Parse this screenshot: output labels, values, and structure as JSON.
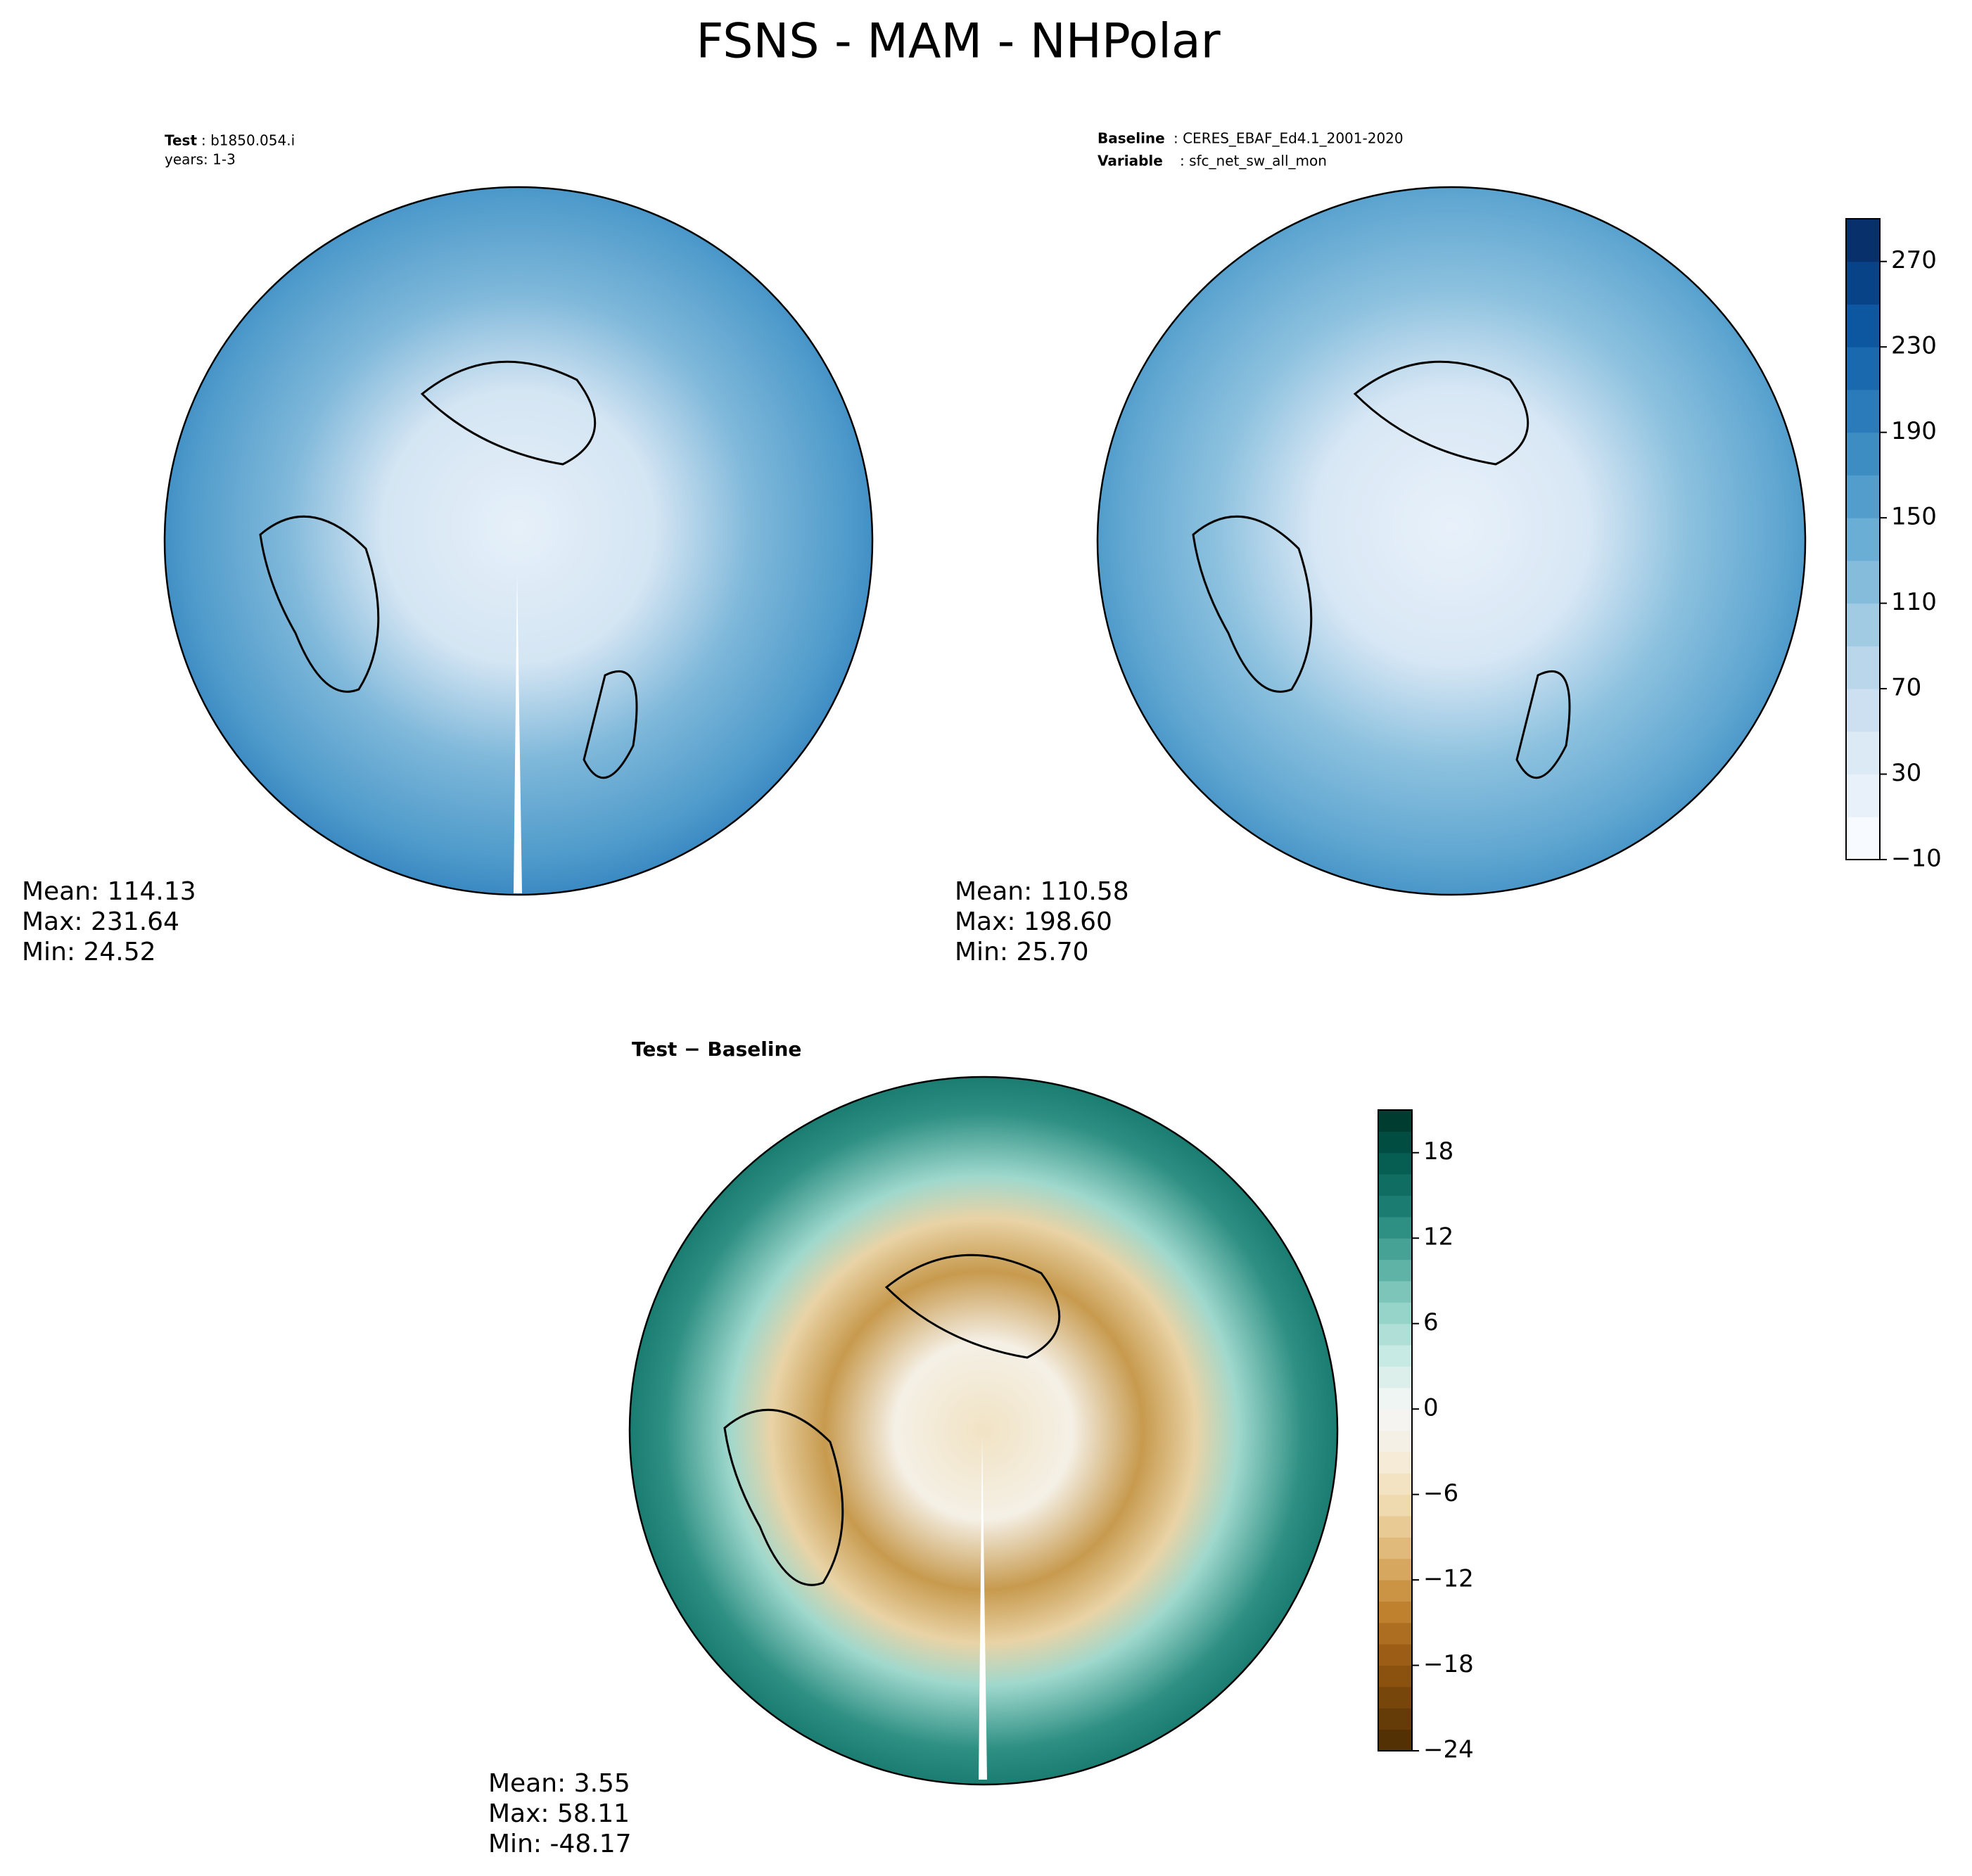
{
  "title": "FSNS - MAM - NHPolar",
  "chart_data": [
    {
      "type": "polar-map",
      "label": "Test",
      "text": ": b1850.054.i",
      "subtext": "years: 1-3",
      "stats": [
        "Mean: 114.13",
        "Max: 231.64",
        "Min: 24.52"
      ]
    },
    {
      "type": "polar-map",
      "label": "Baseline",
      "text": ": CERES_EBAF_Ed4.1_2001-2020",
      "label2": "Variable",
      "text2": ": sfc_net_sw_all_mon",
      "stats": [
        "Mean: 110.58",
        "Max: 198.60",
        "Min: 25.70"
      ],
      "colorbar": {
        "ylim": [
          -10,
          290
        ],
        "yticks": [
          {
            "value": -10,
            "label": "−10"
          },
          30,
          70,
          110,
          150,
          190,
          230,
          270
        ],
        "colors": [
          "#f7fbff",
          "#e8f1fa",
          "#dceaf6",
          "#cde0f1",
          "#bad6eb",
          "#a0cbe2",
          "#85bcdc",
          "#6aaed6",
          "#529dcc",
          "#3d8dc3",
          "#2b7bba",
          "#1a68ae",
          "#0d57a1",
          "#084287",
          "#08306b"
        ]
      }
    },
    {
      "type": "polar-map",
      "label": "Test − Baseline",
      "stats": [
        "Mean:  3.55",
        "Max: 58.11",
        "Min: -48.17"
      ],
      "colorbar": {
        "ylim": [
          -24,
          21
        ],
        "yticks": [
          {
            "value": -24,
            "label": "−24"
          },
          {
            "value": -18,
            "label": "−18"
          },
          {
            "value": -12,
            "label": "−12"
          },
          {
            "value": -6,
            "label": "−6"
          },
          0,
          6,
          12,
          18
        ],
        "colors": [
          "#543005",
          "#653b08",
          "#77460b",
          "#8a510f",
          "#9c5e17",
          "#ad6e22",
          "#bf812d",
          "#cb9445",
          "#d6a75e",
          "#dfba7a",
          "#e8cb94",
          "#efd9ae",
          "#f3e3c3",
          "#f5ebd6",
          "#f5f0e6",
          "#f5f4f0",
          "#eef5f3",
          "#dcefeb",
          "#c7eae5",
          "#afdfd7",
          "#96d3c8",
          "#7cc5b8",
          "#5fb3a6",
          "#45a295",
          "#2e8f83",
          "#1b7d72",
          "#0f6d62",
          "#065e52",
          "#024d42",
          "#003c30"
        ]
      }
    }
  ]
}
